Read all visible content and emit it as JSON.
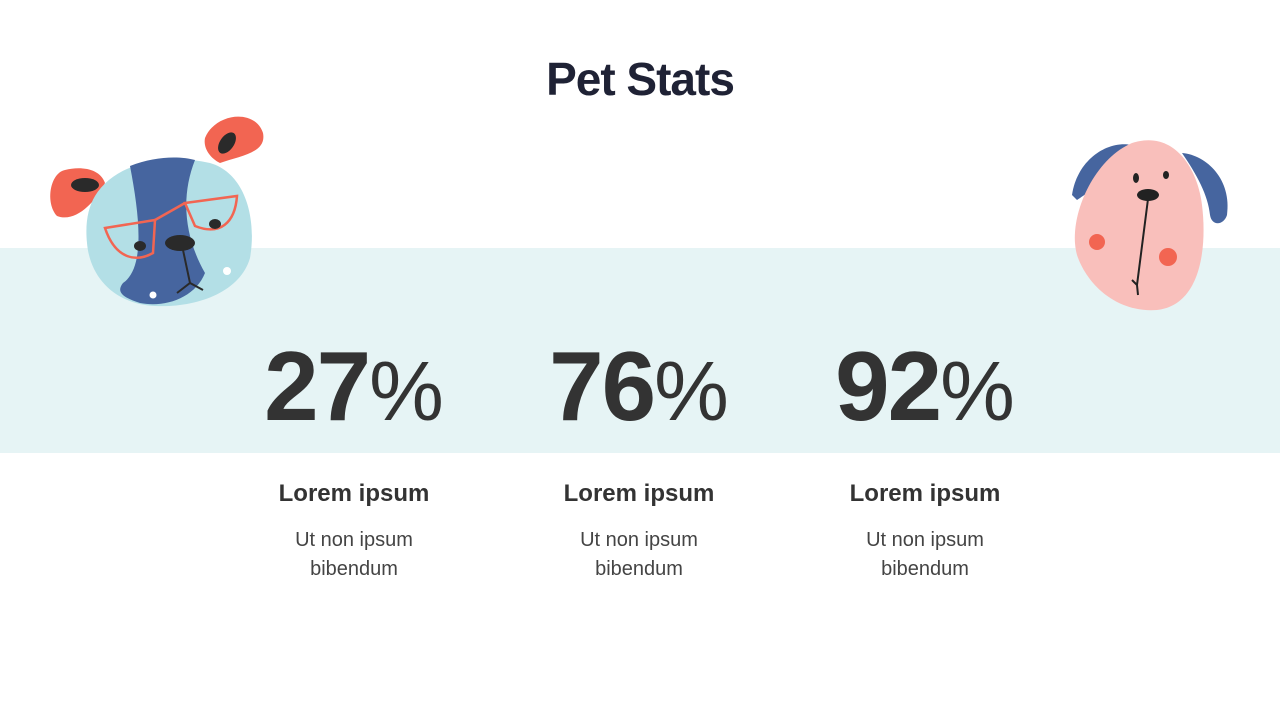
{
  "title": "Pet Stats",
  "stats": [
    {
      "value": "27",
      "unit": "%",
      "heading": "Lorem ipsum",
      "line1": "Ut non ipsum",
      "line2": "bibendum"
    },
    {
      "value": "76",
      "unit": "%",
      "heading": "Lorem ipsum",
      "line1": "Ut non ipsum",
      "line2": "bibendum"
    },
    {
      "value": "92",
      "unit": "%",
      "heading": "Lorem ipsum",
      "line1": "Ut non ipsum",
      "line2": "bibendum"
    }
  ],
  "colors": {
    "band": "#e6f4f5",
    "title": "#1f2235",
    "coral": "#f26552",
    "blue": "#46659f",
    "lightblue": "#b3dfe6",
    "pink": "#f9bfbb"
  },
  "illustrations": [
    "dog-with-glasses-icon",
    "pink-dog-icon"
  ]
}
